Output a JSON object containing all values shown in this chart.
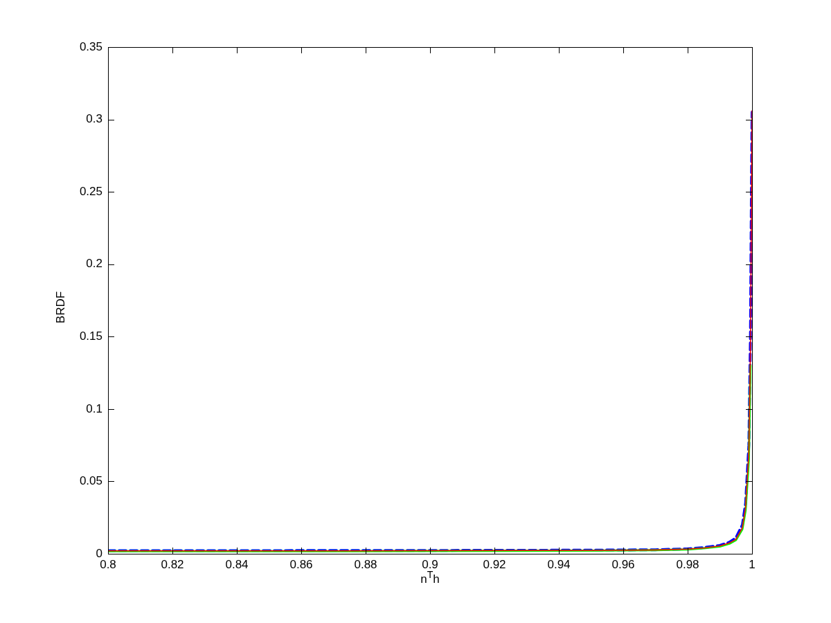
{
  "chart_data": {
    "type": "line",
    "xlabel": "n$^{T}$h",
    "ylabel": "BRDF",
    "x": [
      0.8,
      0.85,
      0.9,
      0.95,
      0.97,
      0.98,
      0.985,
      0.99,
      0.993,
      0.995,
      0.997,
      0.998,
      0.999,
      0.9995,
      0.9998,
      1
    ],
    "series": [
      {
        "color": "#ff0000",
        "line_style": "solid",
        "values": [
          0.002,
          0.002,
          0.0021,
          0.0023,
          0.0026,
          0.0032,
          0.004,
          0.0054,
          0.0075,
          0.01,
          0.018,
          0.032,
          0.07,
          0.14,
          0.24,
          0.306
        ]
      },
      {
        "color": "#00ff00",
        "line_style": "solid",
        "values": [
          0.0018,
          0.0018,
          0.0019,
          0.0021,
          0.0025,
          0.003,
          0.0038,
          0.005,
          0.007,
          0.0095,
          0.017,
          0.03,
          0.065,
          0.13,
          null,
          null
        ]
      },
      {
        "color": "#0000ff",
        "line_style": "dashed",
        "values": [
          0.0022,
          0.0022,
          0.0023,
          0.0025,
          0.0028,
          0.0034,
          0.0043,
          0.0058,
          0.008,
          0.011,
          0.02,
          0.035,
          0.075,
          0.15,
          0.25,
          0.305
        ]
      }
    ],
    "xlim": [
      0.8,
      1
    ],
    "xticks": [
      0.8,
      0.82,
      0.84,
      0.86,
      0.88,
      0.9,
      0.92,
      0.94,
      0.96,
      0.98,
      1
    ],
    "ylim": [
      0,
      0.35
    ],
    "yticks": [
      0,
      0.05,
      0.1,
      0.15,
      0.2,
      0.25,
      0.3,
      0.35
    ],
    "grid": false,
    "legend": false,
    "marker": "none"
  }
}
